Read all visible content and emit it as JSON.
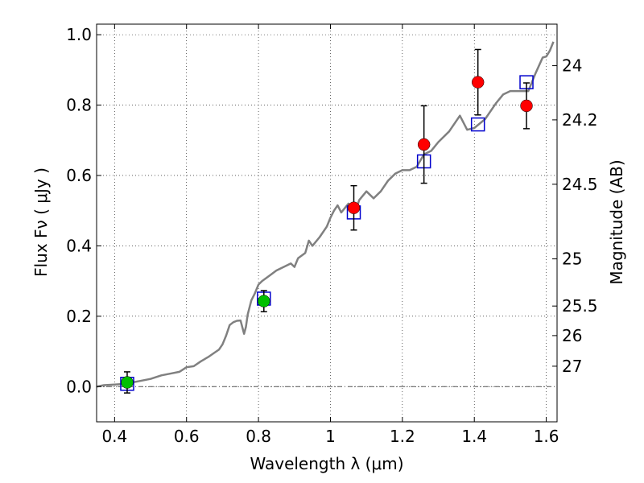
{
  "chart_data": {
    "type": "scatter",
    "xlabel": "Wavelength  λ (μm)",
    "ylabel": "Flux  Fν  ( μJy )",
    "y2label": "Magnitude (AB)",
    "xlim": [
      0.35,
      1.63
    ],
    "ylim": [
      -0.1,
      1.03
    ],
    "grid": true,
    "x_ticks": [
      0.4,
      0.6,
      0.8,
      1.0,
      1.2,
      1.4,
      1.6
    ],
    "x_tick_labels": [
      "0.4",
      "0.6",
      "0.8",
      "1",
      "1.2",
      "1.4",
      "1.6"
    ],
    "y_ticks": [
      0.0,
      0.2,
      0.4,
      0.6,
      0.8,
      1.0
    ],
    "y_tick_labels": [
      "0.0",
      "0.2",
      "0.4",
      "0.6",
      "0.8",
      "1.0"
    ],
    "y2_ticks": [
      {
        "label": "24",
        "flux": 0.912
      },
      {
        "label": "24.2",
        "flux": 0.758
      },
      {
        "label": "24.5",
        "flux": 0.575
      },
      {
        "label": "25",
        "flux": 0.363
      },
      {
        "label": "25.5",
        "flux": 0.229
      },
      {
        "label": "26",
        "flux": 0.145
      },
      {
        "label": "27",
        "flux": 0.058
      }
    ],
    "colors": {
      "model": "#808080",
      "red_points": "#ff0000",
      "green_points": "#00c000",
      "model_boxes": "#0000cc",
      "errorbars": "#000000",
      "zero_line": "#555555"
    },
    "series": [
      {
        "role": "model-spectrum",
        "points": [
          [
            0.35,
            0.0
          ],
          [
            0.37,
            0.004
          ],
          [
            0.4,
            0.006
          ],
          [
            0.43,
            0.008
          ],
          [
            0.45,
            0.012
          ],
          [
            0.47,
            0.016
          ],
          [
            0.5,
            0.022
          ],
          [
            0.53,
            0.032
          ],
          [
            0.56,
            0.038
          ],
          [
            0.58,
            0.042
          ],
          [
            0.6,
            0.055
          ],
          [
            0.62,
            0.058
          ],
          [
            0.64,
            0.072
          ],
          [
            0.66,
            0.084
          ],
          [
            0.68,
            0.098
          ],
          [
            0.69,
            0.105
          ],
          [
            0.7,
            0.12
          ],
          [
            0.71,
            0.145
          ],
          [
            0.72,
            0.175
          ],
          [
            0.73,
            0.183
          ],
          [
            0.74,
            0.187
          ],
          [
            0.75,
            0.188
          ],
          [
            0.76,
            0.15
          ],
          [
            0.765,
            0.17
          ],
          [
            0.77,
            0.205
          ],
          [
            0.78,
            0.245
          ],
          [
            0.79,
            0.265
          ],
          [
            0.8,
            0.29
          ],
          [
            0.81,
            0.3
          ],
          [
            0.83,
            0.315
          ],
          [
            0.85,
            0.33
          ],
          [
            0.87,
            0.34
          ],
          [
            0.89,
            0.35
          ],
          [
            0.9,
            0.34
          ],
          [
            0.91,
            0.365
          ],
          [
            0.93,
            0.38
          ],
          [
            0.94,
            0.415
          ],
          [
            0.95,
            0.4
          ],
          [
            0.97,
            0.425
          ],
          [
            0.99,
            0.455
          ],
          [
            1.0,
            0.48
          ],
          [
            1.01,
            0.5
          ],
          [
            1.02,
            0.515
          ],
          [
            1.03,
            0.495
          ],
          [
            1.05,
            0.52
          ],
          [
            1.07,
            0.5
          ],
          [
            1.08,
            0.53
          ],
          [
            1.1,
            0.555
          ],
          [
            1.12,
            0.535
          ],
          [
            1.14,
            0.555
          ],
          [
            1.16,
            0.585
          ],
          [
            1.18,
            0.605
          ],
          [
            1.2,
            0.615
          ],
          [
            1.22,
            0.615
          ],
          [
            1.24,
            0.625
          ],
          [
            1.26,
            0.66
          ],
          [
            1.28,
            0.67
          ],
          [
            1.3,
            0.695
          ],
          [
            1.33,
            0.725
          ],
          [
            1.36,
            0.77
          ],
          [
            1.38,
            0.73
          ],
          [
            1.4,
            0.735
          ],
          [
            1.43,
            0.76
          ],
          [
            1.46,
            0.805
          ],
          [
            1.48,
            0.83
          ],
          [
            1.5,
            0.84
          ],
          [
            1.53,
            0.84
          ],
          [
            1.55,
            0.84
          ],
          [
            1.57,
            0.89
          ],
          [
            1.59,
            0.935
          ],
          [
            1.6,
            0.938
          ],
          [
            1.61,
            0.955
          ],
          [
            1.62,
            0.98
          ]
        ]
      },
      {
        "role": "model-photometry-boxes",
        "points": [
          [
            0.435,
            0.008
          ],
          [
            0.815,
            0.25
          ],
          [
            1.065,
            0.495
          ],
          [
            1.26,
            0.64
          ],
          [
            1.41,
            0.745
          ],
          [
            1.545,
            0.865
          ]
        ]
      },
      {
        "role": "observed-green",
        "points": [
          {
            "x": 0.435,
            "y": 0.012,
            "err": 0.03
          },
          {
            "x": 0.815,
            "y": 0.243,
            "err": 0.03
          }
        ]
      },
      {
        "role": "observed-red",
        "points": [
          {
            "x": 1.065,
            "y": 0.508,
            "err": 0.063
          },
          {
            "x": 1.26,
            "y": 0.688,
            "err": 0.11
          },
          {
            "x": 1.41,
            "y": 0.865,
            "err": 0.093
          },
          {
            "x": 1.545,
            "y": 0.798,
            "err": 0.065
          }
        ]
      }
    ]
  }
}
